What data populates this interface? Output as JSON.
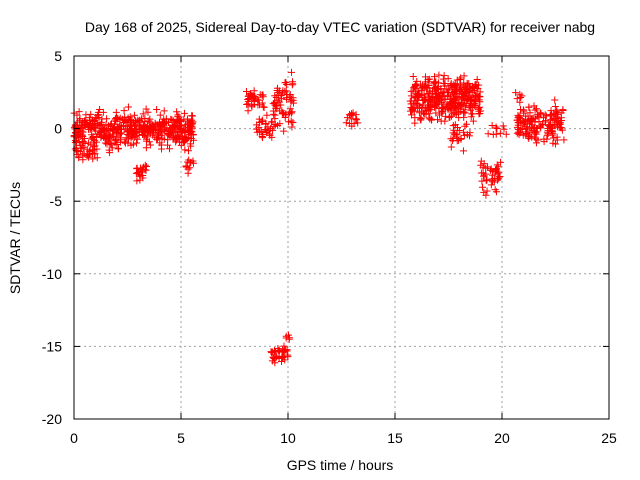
{
  "chart_data": {
    "type": "scatter",
    "title": "Day 168 of 2025, Sidereal Day-to-day VTEC variation (SDTVAR) for receiver nabg",
    "xlabel": "GPS time / hours",
    "ylabel": "SDTVAR / TECUs",
    "xlim": [
      0,
      25
    ],
    "ylim": [
      -20,
      5
    ],
    "xticks": [
      0,
      5,
      10,
      15,
      20,
      25
    ],
    "yticks": [
      -20,
      -15,
      -10,
      -5,
      0,
      5
    ],
    "grid": true,
    "marker": "+",
    "series": [
      {
        "name": "SDTVAR",
        "color": "#ff0000",
        "clusters": [
          {
            "x": [
              0.0,
              5.6
            ],
            "y": [
              -1.8,
              1.6
            ],
            "n": 520
          },
          {
            "x": [
              0.1,
              1.2
            ],
            "y": [
              -2.6,
              -1.0
            ],
            "n": 25
          },
          {
            "x": [
              2.9,
              3.4
            ],
            "y": [
              -3.8,
              -2.2
            ],
            "n": 20
          },
          {
            "x": [
              5.2,
              5.6
            ],
            "y": [
              -3.3,
              -1.5
            ],
            "n": 12
          },
          {
            "x": [
              8.0,
              9.0
            ],
            "y": [
              1.0,
              3.0
            ],
            "n": 40
          },
          {
            "x": [
              8.5,
              9.3
            ],
            "y": [
              -1.2,
              1.2
            ],
            "n": 30
          },
          {
            "x": [
              9.3,
              10.3
            ],
            "y": [
              -1.0,
              4.4
            ],
            "n": 70
          },
          {
            "x": [
              9.2,
              10.0
            ],
            "y": [
              -16.4,
              -14.8
            ],
            "n": 40
          },
          {
            "x": [
              9.9,
              10.1
            ],
            "y": [
              -15.0,
              -13.8
            ],
            "n": 5
          },
          {
            "x": [
              12.7,
              13.3
            ],
            "y": [
              -0.4,
              1.8
            ],
            "n": 15
          },
          {
            "x": [
              15.7,
              19.0
            ],
            "y": [
              0.0,
              4.2
            ],
            "n": 380
          },
          {
            "x": [
              17.6,
              18.5
            ],
            "y": [
              -1.8,
              1.0
            ],
            "n": 25
          },
          {
            "x": [
              19.0,
              20.0
            ],
            "y": [
              -5.0,
              -1.5
            ],
            "n": 45
          },
          {
            "x": [
              19.2,
              20.2
            ],
            "y": [
              -0.8,
              0.6
            ],
            "n": 10
          },
          {
            "x": [
              20.6,
              21.0
            ],
            "y": [
              1.8,
              2.8
            ],
            "n": 5
          },
          {
            "x": [
              20.7,
              22.9
            ],
            "y": [
              -1.8,
              2.4
            ],
            "n": 160
          }
        ]
      }
    ]
  }
}
